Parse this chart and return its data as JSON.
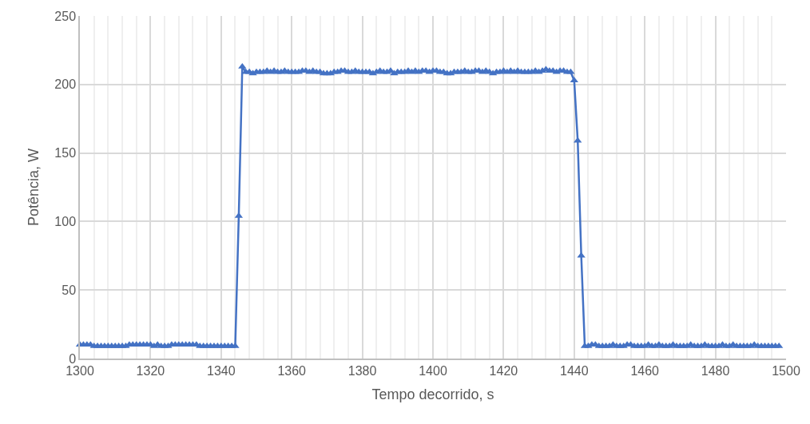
{
  "chart_data": {
    "type": "line",
    "xlabel": "Tempo decorrido, s",
    "ylabel": "Potência, W",
    "x": [
      1300,
      1301,
      1302,
      1303,
      1304,
      1305,
      1306,
      1307,
      1308,
      1309,
      1310,
      1311,
      1312,
      1313,
      1314,
      1315,
      1316,
      1317,
      1318,
      1319,
      1320,
      1321,
      1322,
      1323,
      1324,
      1325,
      1326,
      1327,
      1328,
      1329,
      1330,
      1331,
      1332,
      1333,
      1334,
      1335,
      1336,
      1337,
      1338,
      1339,
      1340,
      1341,
      1342,
      1343,
      1344,
      1345,
      1346,
      1347,
      1348,
      1349,
      1350,
      1351,
      1352,
      1353,
      1354,
      1355,
      1356,
      1357,
      1358,
      1359,
      1360,
      1361,
      1362,
      1363,
      1364,
      1365,
      1366,
      1367,
      1368,
      1369,
      1370,
      1371,
      1372,
      1373,
      1374,
      1375,
      1376,
      1377,
      1378,
      1379,
      1380,
      1381,
      1382,
      1383,
      1384,
      1385,
      1386,
      1387,
      1388,
      1389,
      1390,
      1391,
      1392,
      1393,
      1394,
      1395,
      1396,
      1397,
      1398,
      1399,
      1400,
      1401,
      1402,
      1403,
      1404,
      1405,
      1406,
      1407,
      1408,
      1409,
      1410,
      1411,
      1412,
      1413,
      1414,
      1415,
      1416,
      1417,
      1418,
      1419,
      1420,
      1421,
      1422,
      1423,
      1424,
      1425,
      1426,
      1427,
      1428,
      1429,
      1430,
      1431,
      1432,
      1433,
      1434,
      1435,
      1436,
      1437,
      1438,
      1439,
      1440,
      1441,
      1442,
      1443,
      1444,
      1445,
      1446,
      1447,
      1448,
      1449,
      1450,
      1451,
      1452,
      1453,
      1454,
      1455,
      1456,
      1457,
      1458,
      1459,
      1460,
      1461,
      1462,
      1463,
      1464,
      1465,
      1466,
      1467,
      1468,
      1469,
      1470,
      1471,
      1472,
      1473,
      1474,
      1475,
      1476,
      1477,
      1478,
      1479,
      1480,
      1481,
      1482,
      1483,
      1484,
      1485,
      1486,
      1487,
      1488,
      1489,
      1490,
      1491,
      1492,
      1493,
      1494,
      1495,
      1496,
      1497,
      1498
    ],
    "series": [
      {
        "color": "#4472c4",
        "values": [
          10,
          10,
          10,
          10,
          9,
          9,
          9,
          9,
          9,
          9,
          9,
          9,
          9,
          9,
          10,
          10,
          10,
          10,
          10,
          10,
          10,
          9,
          10,
          9,
          9,
          9,
          10,
          10,
          10,
          10,
          10,
          10,
          10,
          10,
          9,
          9,
          9,
          9,
          9,
          9,
          9,
          9,
          9,
          9,
          9,
          104,
          213,
          209,
          209,
          208,
          209,
          209,
          209,
          210,
          209,
          210,
          209,
          209,
          210,
          209,
          209,
          209,
          209,
          210,
          210,
          209,
          210,
          209,
          209,
          208,
          208,
          208,
          209,
          209,
          210,
          210,
          209,
          209,
          210,
          209,
          209,
          209,
          209,
          208,
          209,
          210,
          209,
          209,
          210,
          208,
          209,
          209,
          209,
          210,
          209,
          210,
          209,
          210,
          210,
          209,
          210,
          210,
          209,
          209,
          208,
          208,
          209,
          209,
          209,
          210,
          209,
          209,
          210,
          210,
          209,
          210,
          209,
          208,
          209,
          209,
          210,
          209,
          210,
          209,
          210,
          209,
          209,
          209,
          209,
          210,
          209,
          210,
          211,
          210,
          210,
          209,
          210,
          210,
          209,
          209,
          203,
          159,
          75,
          9,
          9,
          10,
          10,
          9,
          9,
          9,
          9,
          10,
          9,
          9,
          9,
          10,
          10,
          9,
          9,
          9,
          9,
          10,
          9,
          9,
          10,
          9,
          9,
          9,
          10,
          9,
          9,
          9,
          9,
          10,
          9,
          9,
          9,
          10,
          9,
          9,
          9,
          9,
          10,
          9,
          9,
          10,
          9,
          9,
          9,
          9,
          9,
          10,
          9,
          9,
          9,
          9,
          9,
          9,
          9
        ]
      }
    ],
    "xlim": [
      1300,
      1500
    ],
    "xticks": [
      1300,
      1320,
      1340,
      1360,
      1380,
      1400,
      1420,
      1440,
      1460,
      1480,
      1500
    ],
    "ylim": [
      0,
      250
    ],
    "yticks": [
      0,
      50,
      100,
      150,
      200,
      250
    ],
    "grid": true,
    "marker": "triangle",
    "line_style": "solid",
    "legend": false
  }
}
